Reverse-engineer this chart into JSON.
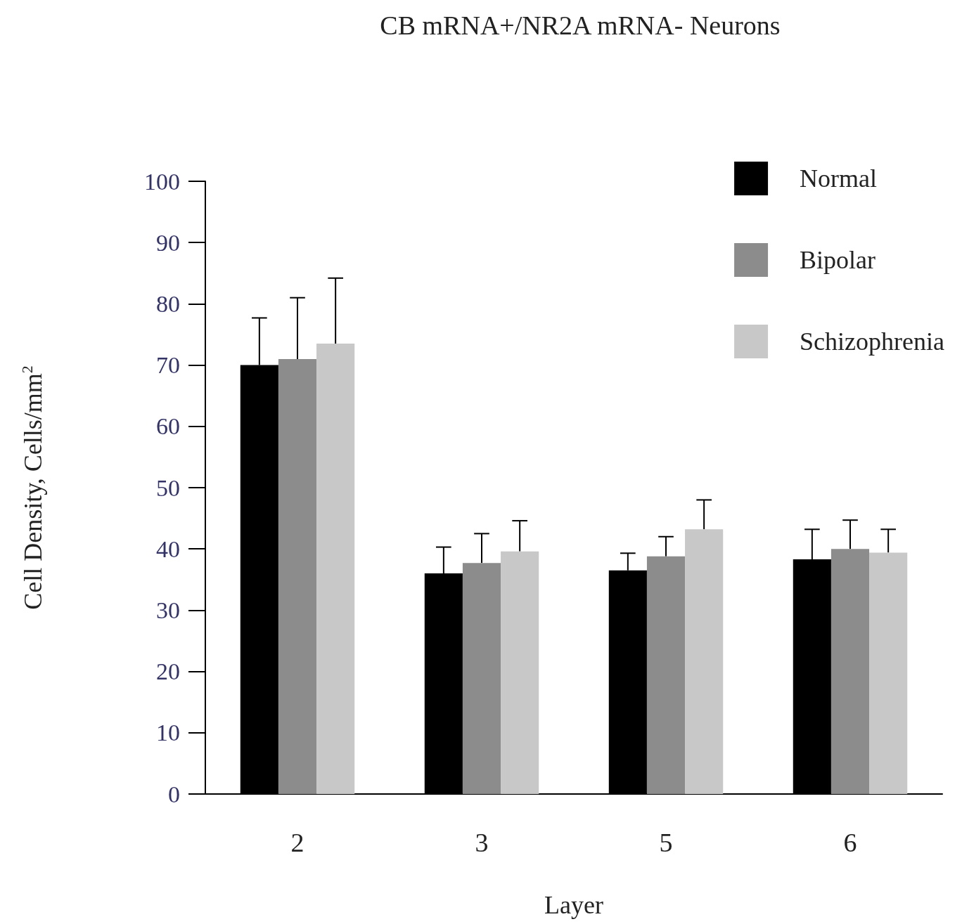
{
  "chart_data": {
    "type": "bar",
    "title": "CB mRNA+/NR2A mRNA- Neurons",
    "xlabel": "Layer",
    "ylabel": "Cell Density, Cells/mm$^{2}$",
    "categories": [
      "2",
      "3",
      "5",
      "6"
    ],
    "series": [
      {
        "name": "Normal",
        "color": "#000000",
        "values": [
          70,
          36,
          36.5,
          38.3
        ],
        "errors": [
          [
            70,
            77.7
          ],
          [
            36,
            40.3
          ],
          [
            36.5,
            39.3
          ],
          [
            38.3,
            43.2
          ]
        ]
      },
      {
        "name": "Bipolar",
        "color": "#8c8c8c",
        "values": [
          71,
          37.7,
          38.8,
          40
        ],
        "errors": [
          [
            71,
            81
          ],
          [
            37.7,
            42.5
          ],
          [
            38.8,
            42
          ],
          [
            40,
            44.7
          ]
        ]
      },
      {
        "name": "Schizophrenia",
        "color": "#c8c8c8",
        "values": [
          73.5,
          39.6,
          43.2,
          39.4
        ],
        "errors": [
          [
            73.5,
            84.2
          ],
          [
            39.6,
            44.6
          ],
          [
            43.2,
            48
          ],
          [
            39.4,
            43.2
          ]
        ]
      }
    ],
    "ylim": [
      0,
      100
    ],
    "yticks": [
      0,
      10,
      20,
      30,
      40,
      50,
      60,
      70,
      80,
      90,
      100
    ],
    "grid": false,
    "legend": "top right"
  }
}
